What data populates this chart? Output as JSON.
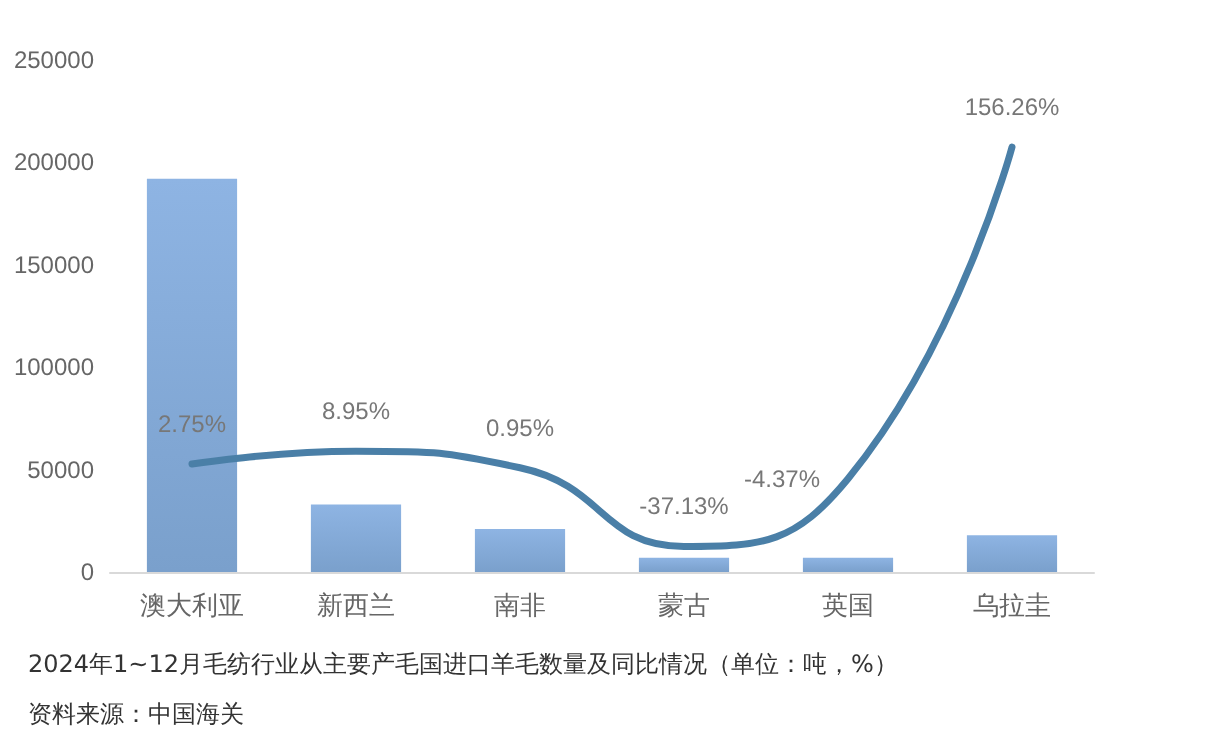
{
  "chart_data": {
    "type": "bar",
    "title": "2024年1~12月毛纺行业从主要产毛国进口羊毛数量及同比情况（单位：吨，%）",
    "annotations": [
      "资料来源：中国海关"
    ],
    "categories": [
      "澳大利亚",
      "新西兰",
      "南非",
      "蒙古",
      "英国",
      "乌拉圭"
    ],
    "series": [
      {
        "color": "#8eb4e3",
        "values": [
          192000,
          33000,
          21000,
          7000,
          7000,
          18000
        ]
      },
      {
        "type": "line",
        "axis": "y2",
        "color": "#4a7fa7",
        "values": [
          2.75,
          8.95,
          0.95,
          -37.13,
          -4.37,
          156.26
        ],
        "value_labels": [
          "2.75%",
          "8.95%",
          "0.95%",
          "-37.13%",
          "-4.37%",
          "156.26%"
        ]
      }
    ],
    "ylim": [
      0,
      250000
    ],
    "yticks": [
      0,
      50000,
      100000,
      150000,
      200000,
      250000
    ],
    "grid": false,
    "marker": "none"
  }
}
